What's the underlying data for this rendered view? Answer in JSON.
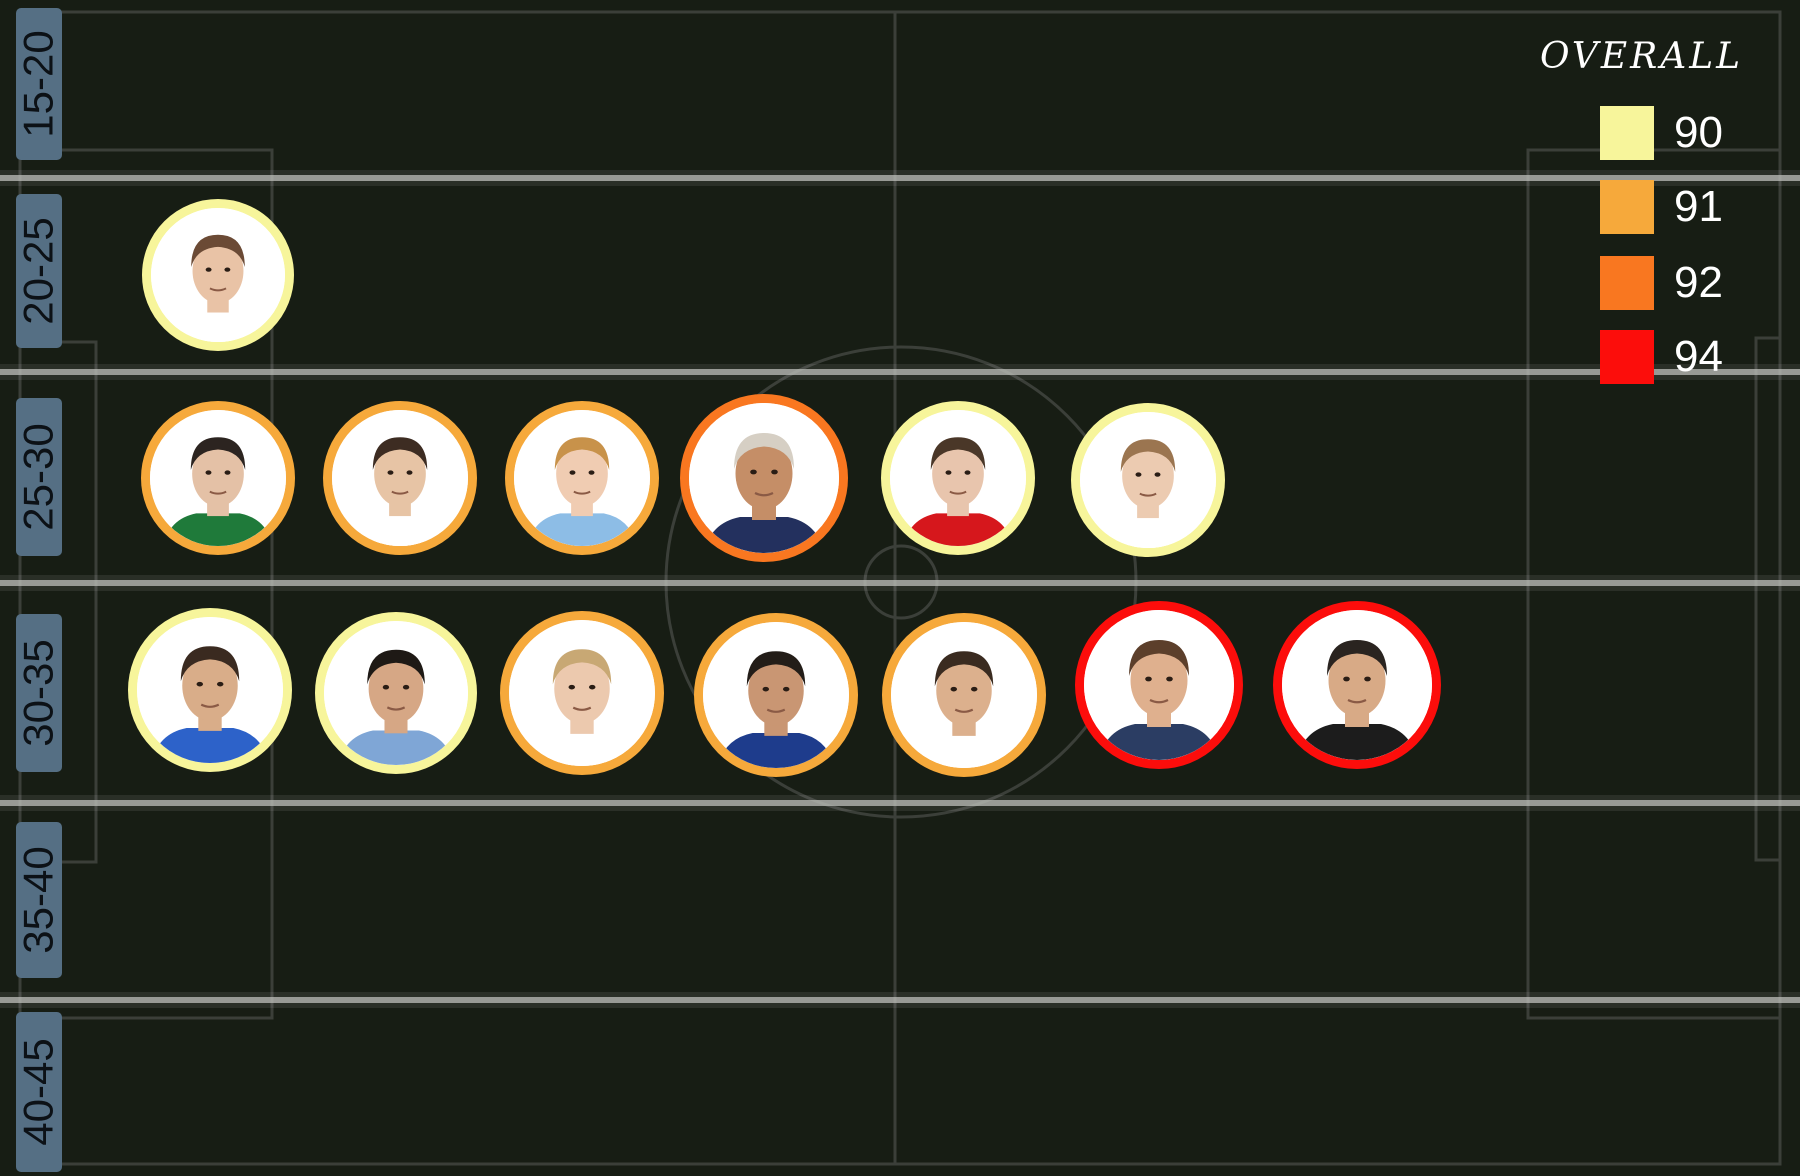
{
  "chart_data": {
    "type": "scatter",
    "title": "",
    "age_groups": [
      "15-20",
      "20-25",
      "25-30",
      "30-35",
      "35-40",
      "40-45"
    ],
    "legend": {
      "title": "OVERALL",
      "items": [
        {
          "label": "90",
          "value": 90,
          "color": "#f7f59b"
        },
        {
          "label": "91",
          "value": 91,
          "color": "#f6a93b"
        },
        {
          "label": "92",
          "value": 92,
          "color": "#f97720"
        },
        {
          "label": "94",
          "value": 94,
          "color": "#fc0d0b"
        }
      ]
    },
    "players": [
      {
        "age_group": "20-25",
        "overall": 90,
        "skin": "#e9c3a6",
        "hair": "#6b4a35",
        "shirt": "#ffffff"
      },
      {
        "age_group": "25-30",
        "overall": 91,
        "skin": "#e4c1a6",
        "hair": "#2c2420",
        "shirt": "#1f7a3a"
      },
      {
        "age_group": "25-30",
        "overall": 91,
        "skin": "#e7c4a5",
        "hair": "#3d2c22",
        "shirt": "#ffffff"
      },
      {
        "age_group": "25-30",
        "overall": 91,
        "skin": "#f0ccb2",
        "hair": "#c8924a",
        "shirt": "#8dbde6"
      },
      {
        "age_group": "25-30",
        "overall": 92,
        "skin": "#c58e67",
        "hair": "#d6cfc4",
        "shirt": "#23305e"
      },
      {
        "age_group": "25-30",
        "overall": 90,
        "skin": "#e8c5ad",
        "hair": "#4a3728",
        "shirt": "#d6171c"
      },
      {
        "age_group": "25-30",
        "overall": 90,
        "skin": "#eccbb1",
        "hair": "#9b7550",
        "shirt": "#ffffff"
      },
      {
        "age_group": "30-35",
        "overall": 90,
        "skin": "#d9ad89",
        "hair": "#3a2a20",
        "shirt": "#2d62c9"
      },
      {
        "age_group": "30-35",
        "overall": 90,
        "skin": "#d6a785",
        "hair": "#1e1915",
        "shirt": "#7fa6d6"
      },
      {
        "age_group": "30-35",
        "overall": 91,
        "skin": "#ecc9ae",
        "hair": "#c8a874",
        "shirt": "#ffffff"
      },
      {
        "age_group": "30-35",
        "overall": 91,
        "skin": "#c99673",
        "hair": "#231d18",
        "shirt": "#1e3c8c"
      },
      {
        "age_group": "30-35",
        "overall": 91,
        "skin": "#dcb08d",
        "hair": "#3a2b20",
        "shirt": "#ffffff"
      },
      {
        "age_group": "30-35",
        "overall": 94,
        "skin": "#dfb08e",
        "hair": "#5c3f2b",
        "shirt": "#2b3d63"
      },
      {
        "age_group": "30-35",
        "overall": 94,
        "skin": "#d8aa86",
        "hair": "#2a2420",
        "shirt": "#1c1c1c"
      }
    ]
  }
}
